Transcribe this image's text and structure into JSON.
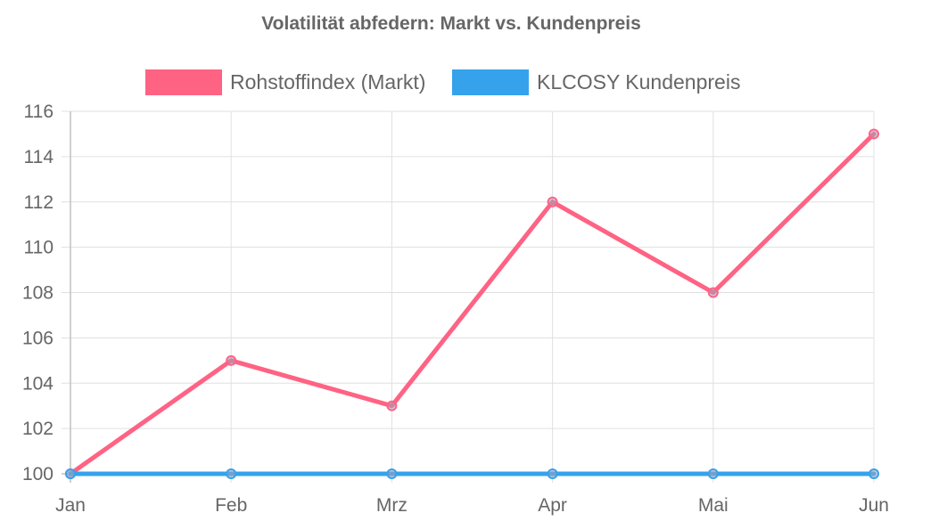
{
  "chart_data": {
    "type": "line",
    "title": "Volatilität abfedern: Markt vs. Kundenpreis",
    "categories": [
      "Jan",
      "Feb",
      "Mrz",
      "Apr",
      "Mai",
      "Jun"
    ],
    "ylim": [
      100,
      116
    ],
    "yticks": [
      100,
      102,
      104,
      106,
      108,
      110,
      112,
      114,
      116
    ],
    "grid": true,
    "legend_position": "top",
    "series": [
      {
        "name": "Rohstoffindex (Markt)",
        "values": [
          100,
          105,
          103,
          112,
          108,
          115
        ],
        "color": "#ff6384"
      },
      {
        "name": "KLCOSY Kundenpreis",
        "values": [
          100,
          100,
          100,
          100,
          100,
          100
        ],
        "color": "#36a2eb"
      }
    ]
  }
}
